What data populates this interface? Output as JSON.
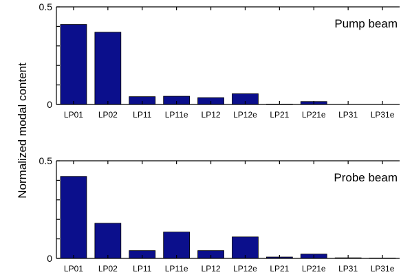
{
  "chart_data": [
    {
      "type": "bar",
      "panel_label": "Pump beam",
      "categories": [
        "LP01",
        "LP02",
        "LP11",
        "LP11e",
        "LP12",
        "LP12e",
        "LP21",
        "LP21e",
        "LP31",
        "LP31e"
      ],
      "values": [
        0.41,
        0.37,
        0.04,
        0.042,
        0.035,
        0.055,
        0.002,
        0.015,
        0.0,
        0.0
      ],
      "ylim": [
        0,
        0.5
      ],
      "yticks": [
        "0",
        "0.5"
      ],
      "ylabel": "Normalized modal content",
      "bar_color": "#0b0f8c"
    },
    {
      "type": "bar",
      "panel_label": "Probe beam",
      "categories": [
        "LP01",
        "LP02",
        "LP11",
        "LP11e",
        "LP12",
        "LP12e",
        "LP21",
        "LP21e",
        "LP31",
        "LP31e"
      ],
      "values": [
        0.42,
        0.18,
        0.04,
        0.135,
        0.04,
        0.11,
        0.007,
        0.022,
        0.003,
        0.002
      ],
      "ylim": [
        0,
        0.5
      ],
      "yticks": [
        "0",
        "0.5"
      ],
      "ylabel": "",
      "bar_color": "#0b0f8c"
    }
  ],
  "ylabel": "Normalized modal content"
}
